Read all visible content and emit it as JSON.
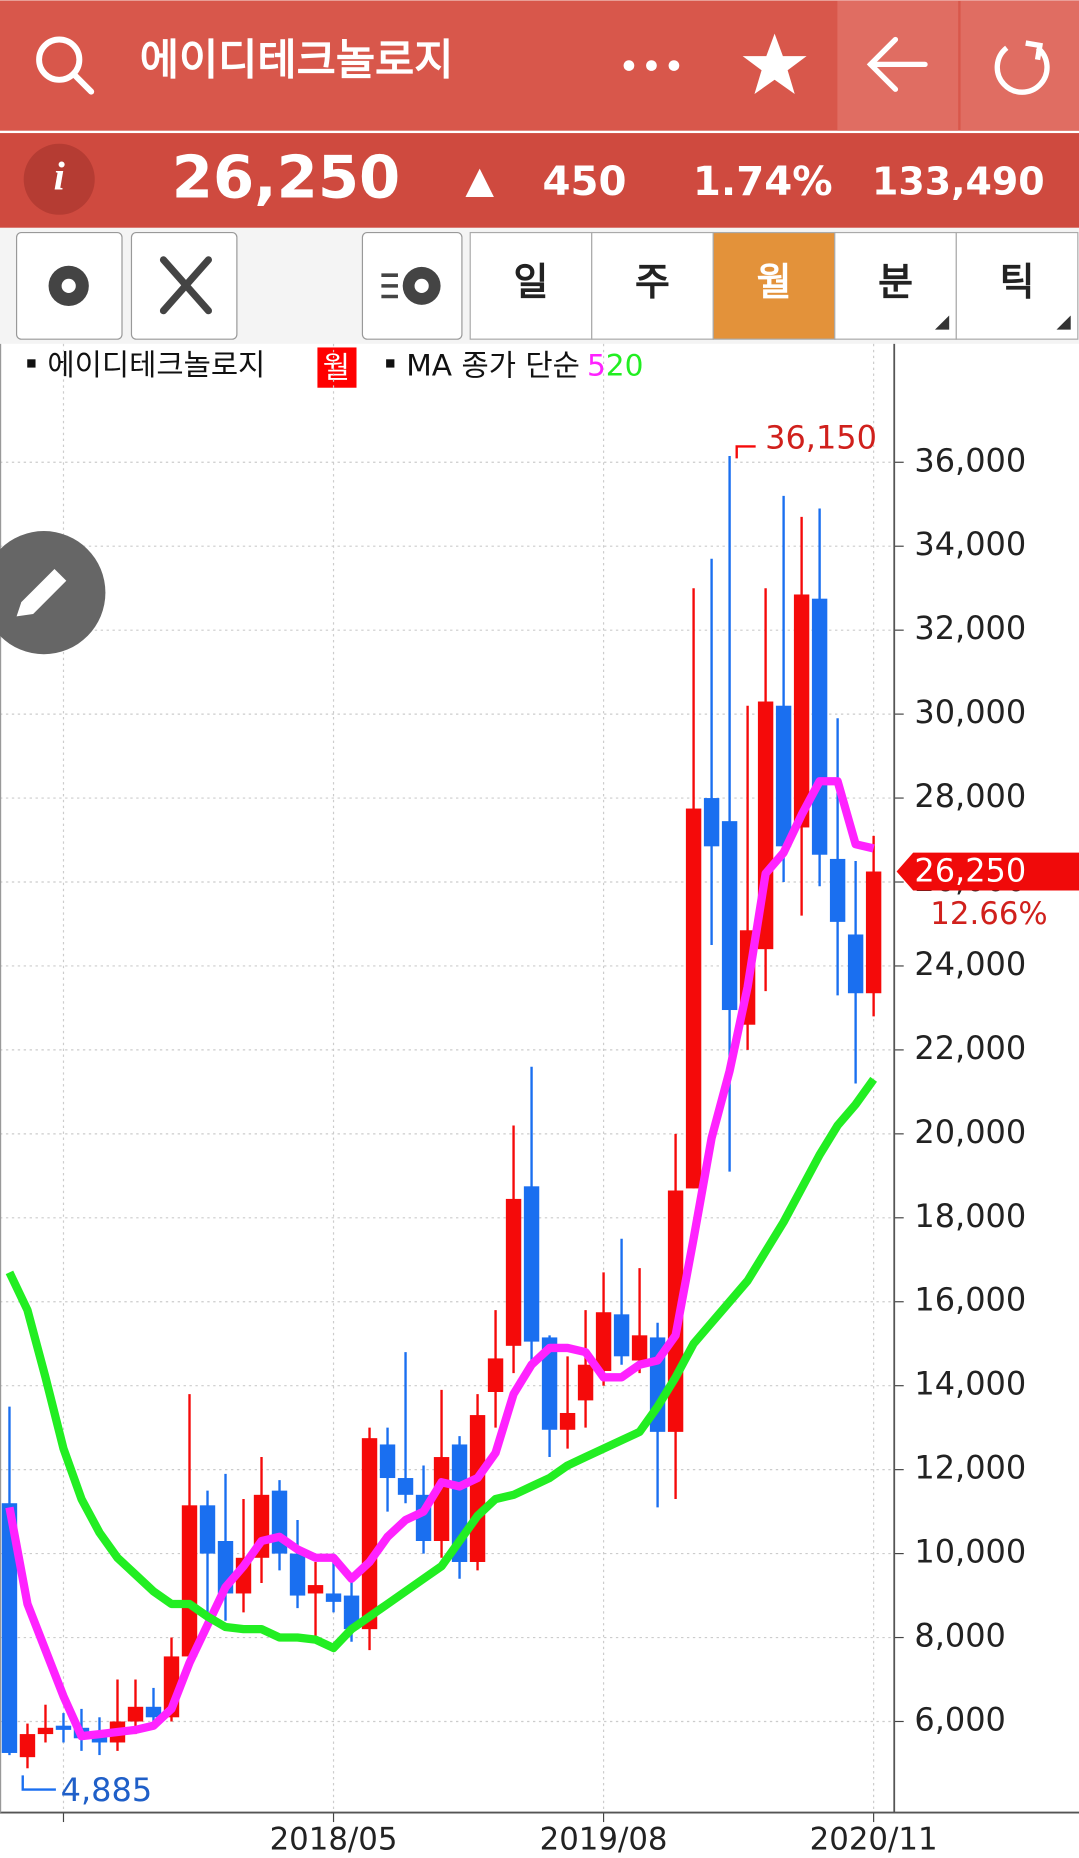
{
  "header": {
    "title": "에이디테크놀로지"
  },
  "quote": {
    "price": "26,250",
    "change": "450",
    "rate": "1.74%",
    "volume": "133,490"
  },
  "toolbar": {
    "periods": [
      "일",
      "주",
      "월",
      "분",
      "틱"
    ],
    "active": 2
  },
  "chart_data": {
    "type": "candlestick",
    "legend": {
      "name": "에이디테크놀로지",
      "period": "월",
      "ma_label": "MA 종가 단순"
    },
    "categories": [
      null,
      null,
      null,
      null,
      null,
      null,
      null,
      null,
      null,
      null,
      null,
      null,
      null,
      null,
      null,
      null,
      null,
      null,
      "2018/05",
      null,
      null,
      null,
      null,
      null,
      null,
      null,
      null,
      null,
      null,
      null,
      null,
      null,
      null,
      "2019/08",
      null,
      null,
      null,
      null,
      null,
      null,
      null,
      null,
      null,
      null,
      null,
      null,
      null,
      null,
      "2020/11"
    ],
    "xticks": [
      3,
      18,
      33,
      48
    ],
    "open": [
      11200,
      5150,
      5700,
      5900,
      5850,
      5700,
      5500,
      6000,
      6350,
      6100,
      7550,
      11150,
      10300,
      9050,
      9900,
      11500,
      10000,
      9050,
      9050,
      9000,
      8200,
      12600,
      11800,
      11400,
      10300,
      12600,
      9800,
      13850,
      14950,
      18750,
      15150,
      12950,
      13650,
      14350,
      15700,
      14600,
      15150,
      12900,
      18700,
      28000,
      27450,
      22600,
      24400,
      30200,
      27300,
      32750,
      26550,
      24750,
      23350
    ],
    "high": [
      13500,
      5950,
      6400,
      6200,
      6300,
      6100,
      7000,
      7000,
      6800,
      8000,
      13800,
      11500,
      11900,
      11300,
      12300,
      11750,
      10800,
      9800,
      10000,
      9400,
      13000,
      13000,
      14800,
      12100,
      13900,
      12800,
      13800,
      15800,
      20200,
      21600,
      15200,
      14700,
      15800,
      16700,
      17500,
      16800,
      15500,
      20000,
      33000,
      33700,
      36150,
      30200,
      33000,
      35200,
      34700,
      34900,
      29900,
      26500,
      27100
    ],
    "low": [
      5200,
      4885,
      5500,
      5500,
      5300,
      5200,
      5300,
      5700,
      5900,
      6000,
      7200,
      8500,
      8400,
      8600,
      9300,
      9600,
      8700,
      8000,
      8600,
      7900,
      7700,
      11000,
      11200,
      10000,
      9900,
      9400,
      9600,
      13000,
      14300,
      14500,
      12300,
      12500,
      13000,
      14000,
      14500,
      14300,
      11100,
      11300,
      18700,
      24500,
      19100,
      22000,
      23400,
      26000,
      25200,
      25900,
      23300,
      21200,
      22800
    ],
    "close": [
      5250,
      5700,
      5850,
      5800,
      5600,
      5500,
      6000,
      6350,
      6100,
      7550,
      11150,
      10000,
      9050,
      9900,
      11400,
      10000,
      9000,
      9250,
      8850,
      8200,
      12750,
      11800,
      11400,
      10300,
      12300,
      9800,
      13300,
      14650,
      18450,
      15050,
      12950,
      13350,
      14500,
      15750,
      14700,
      15200,
      12900,
      18650,
      27750,
      26850,
      22950,
      24850,
      30300,
      26850,
      32850,
      26650,
      25050,
      23350,
      26250
    ],
    "up_color": "#f50a0a",
    "down_color": "#1a6ff0",
    "series": [
      {
        "name": "5",
        "color": "#ff22ff",
        "values": [
          11100,
          8800,
          7700,
          6600,
          5650,
          5700,
          5750,
          5800,
          5900,
          6300,
          7400,
          8300,
          9200,
          9700,
          10300,
          10400,
          10100,
          9900,
          9900,
          9400,
          9800,
          10400,
          10800,
          11000,
          11700,
          11600,
          11800,
          12400,
          13800,
          14500,
          14900,
          14900,
          14800,
          14200,
          14200,
          14500,
          14600,
          15200,
          17500,
          19900,
          21500,
          23500,
          26200,
          26700,
          27600,
          28400,
          28400,
          26900,
          26800
        ]
      },
      {
        "name": "20",
        "color": "#22ee22",
        "values": [
          16700,
          15800,
          14200,
          12500,
          11300,
          10500,
          9900,
          9500,
          9100,
          8800,
          8800,
          8500,
          8250,
          8200,
          8200,
          8000,
          8000,
          7950,
          7750,
          8200,
          8500,
          8800,
          9100,
          9400,
          9700,
          10300,
          10900,
          11300,
          11400,
          11600,
          11800,
          12100,
          12300,
          12500,
          12700,
          12900,
          13500,
          14200,
          15000,
          15500,
          16000,
          16500,
          17200,
          17900,
          18700,
          19500,
          20200,
          20700,
          21300
        ]
      }
    ],
    "ylim": [
      3830,
      38820
    ],
    "yticks": [
      {
        "value": 6000,
        "label": "6,000"
      },
      {
        "value": 8000,
        "label": "8,000"
      },
      {
        "value": 10000,
        "label": "10,000"
      },
      {
        "value": 12000,
        "label": "12,000"
      },
      {
        "value": 14000,
        "label": "14,000"
      },
      {
        "value": 16000,
        "label": "16,000"
      },
      {
        "value": 18000,
        "label": "18,000"
      },
      {
        "value": 20000,
        "label": "20,000"
      },
      {
        "value": 22000,
        "label": "22,000"
      },
      {
        "value": 24000,
        "label": "24,000"
      },
      {
        "value": 26000,
        "label": "26,000"
      },
      {
        "value": 28000,
        "label": "28,000"
      },
      {
        "value": 30000,
        "label": "30,000"
      },
      {
        "value": 32000,
        "label": "32,000"
      },
      {
        "value": 34000,
        "label": "34,000"
      },
      {
        "value": 36000,
        "label": "36,000"
      }
    ],
    "grid": true,
    "max_marker": {
      "value": 36150,
      "label": "36,150",
      "index": 40
    },
    "min_marker": {
      "value": 4885,
      "label": "4,885",
      "index": 1
    },
    "last_marker": {
      "value": 26250,
      "label": "26,250",
      "rate": "12.66%"
    }
  }
}
